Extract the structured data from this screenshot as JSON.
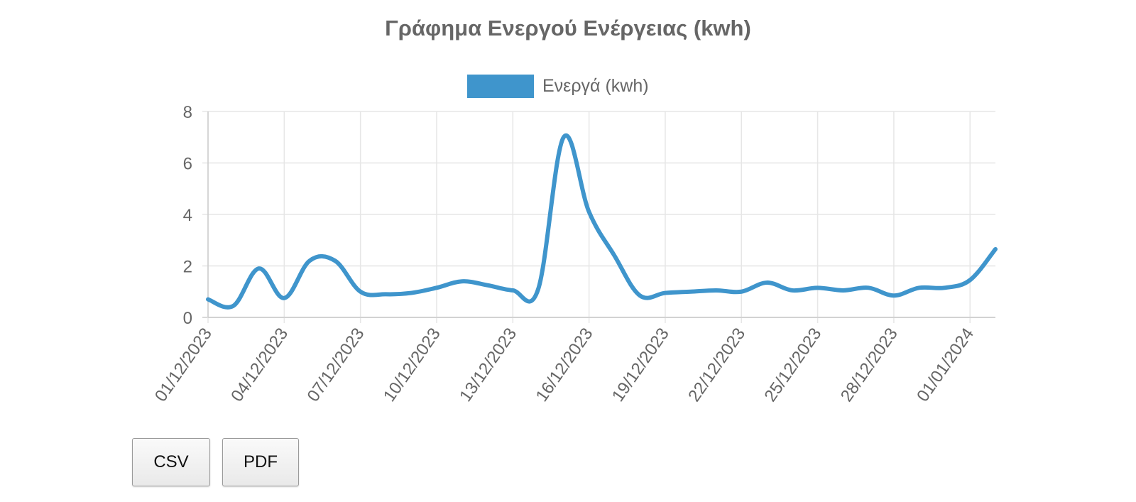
{
  "chart_data": {
    "type": "line",
    "title": "Γράφημα Ενεργού Ενέργειας (kwh)",
    "xlabel": "",
    "ylabel": "",
    "ylim": [
      0,
      8
    ],
    "yticks": [
      "0",
      "2",
      "4",
      "6",
      "8"
    ],
    "xtick_labels": [
      "01/12/2023",
      "04/12/2023",
      "07/12/2023",
      "10/12/2023",
      "13/12/2023",
      "16/12/2023",
      "19/12/2023",
      "22/12/2023",
      "25/12/2023",
      "28/12/2023",
      "01/01/2024"
    ],
    "legend_position": "top",
    "grid": true,
    "series": [
      {
        "name": "Ενεργά (kwh)",
        "color": "#3f95cc",
        "x": [
          "01/12/2023",
          "02/12/2023",
          "03/12/2023",
          "04/12/2023",
          "05/12/2023",
          "06/12/2023",
          "07/12/2023",
          "08/12/2023",
          "09/12/2023",
          "10/12/2023",
          "11/12/2023",
          "12/12/2023",
          "13/12/2023",
          "14/12/2023",
          "15/12/2023",
          "16/12/2023",
          "17/12/2023",
          "18/12/2023",
          "19/12/2023",
          "20/12/2023",
          "21/12/2023",
          "22/12/2023",
          "23/12/2023",
          "24/12/2023",
          "25/12/2023",
          "26/12/2023",
          "27/12/2023",
          "28/12/2023",
          "29/12/2023",
          "30/12/2023",
          "31/12/2023",
          "01/01/2024"
        ],
        "values": [
          0.7,
          0.45,
          1.9,
          0.75,
          2.2,
          2.2,
          1.0,
          0.9,
          0.95,
          1.15,
          1.4,
          1.25,
          1.05,
          1.1,
          7.0,
          4.1,
          2.4,
          0.85,
          0.95,
          1.0,
          1.05,
          1.0,
          1.35,
          1.05,
          1.15,
          1.05,
          1.15,
          0.85,
          1.15,
          1.15,
          1.45,
          2.65
        ]
      }
    ]
  },
  "buttons": {
    "csv_label": "CSV",
    "pdf_label": "PDF"
  }
}
